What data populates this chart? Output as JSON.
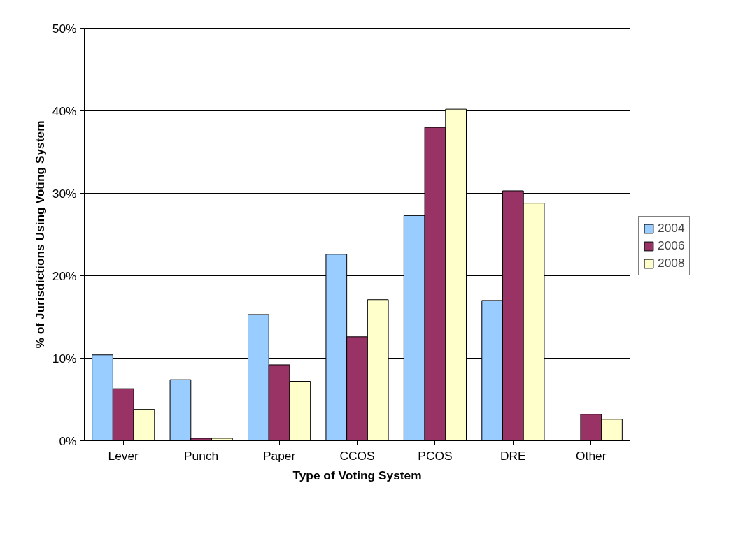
{
  "chart_data": {
    "type": "bar",
    "xlabel": "Type of Voting System",
    "ylabel": "% of Jurisdictions Using Voting System",
    "categories": [
      "Lever",
      "Punch",
      "Paper",
      "CCOS",
      "PCOS",
      "DRE",
      "Other"
    ],
    "series": [
      {
        "name": "2004",
        "color": "#99ccff",
        "values": [
          10.4,
          7.4,
          15.3,
          22.6,
          27.3,
          17.0,
          0
        ]
      },
      {
        "name": "2006",
        "color": "#993366",
        "values": [
          6.3,
          0.3,
          9.2,
          12.6,
          38.0,
          30.3,
          3.2
        ]
      },
      {
        "name": "2008",
        "color": "#ffffcc",
        "values": [
          3.8,
          0.3,
          7.2,
          17.1,
          40.2,
          28.8,
          2.6
        ]
      }
    ],
    "ylim": [
      0,
      50
    ],
    "yticks": [
      {
        "value": 0,
        "label": "0%"
      },
      {
        "value": 10,
        "label": "10%"
      },
      {
        "value": 20,
        "label": "20%"
      },
      {
        "value": 30,
        "label": "30%"
      },
      {
        "value": 40,
        "label": "40%"
      },
      {
        "value": 50,
        "label": "50%"
      }
    ],
    "grid": "y",
    "legend": "right"
  }
}
